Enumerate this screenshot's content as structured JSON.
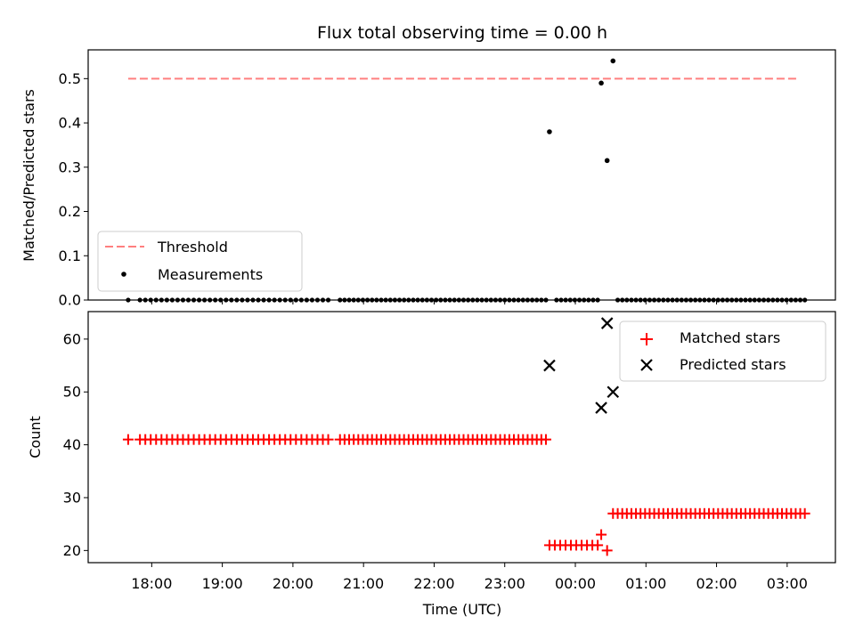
{
  "chart_data": [
    {
      "type": "scatter",
      "title": "Flux total observing time = 0.00 h",
      "ylabel": "Matched/Predicted stars",
      "xlabel": "",
      "ylim": [
        0,
        0.565
      ],
      "yticks": [
        "0.0",
        "0.1",
        "0.2",
        "0.3",
        "0.4",
        "0.5"
      ],
      "legend": {
        "placement": "lower-left",
        "entries": [
          "Threshold",
          "Measurements"
        ]
      },
      "threshold": {
        "name": "Threshold",
        "value": 0.5,
        "x_start": "17:40",
        "x_end": "03:10",
        "color": "#ff7f7f"
      },
      "series": [
        {
          "name": "Measurements",
          "color": "#000000",
          "nonzero_points": [
            {
              "x": "23:38",
              "y": 0.38
            },
            {
              "x": "00:22",
              "y": 0.49
            },
            {
              "x": "00:27",
              "y": 0.315
            },
            {
              "x": "00:32",
              "y": 0.54
            }
          ],
          "zero_ranges": [
            {
              "from": "17:40",
              "to": "17:40",
              "count": 1
            },
            {
              "from": "17:50",
              "to": "20:30",
              "count": 36
            },
            {
              "from": "20:40",
              "to": "23:35",
              "count": 46
            },
            {
              "from": "23:44",
              "to": "00:19",
              "count": 10
            },
            {
              "from": "00:36",
              "to": "03:15",
              "count": 42
            }
          ]
        }
      ]
    },
    {
      "type": "scatter",
      "xlabel": "Time (UTC)",
      "ylabel": "Count",
      "ylim": [
        17.7,
        65.2
      ],
      "xlim": [
        "17:06",
        "03:41"
      ],
      "yticks": [
        "20",
        "30",
        "40",
        "50",
        "60"
      ],
      "xticks": [
        "18:00",
        "19:00",
        "20:00",
        "21:00",
        "22:00",
        "23:00",
        "00:00",
        "01:00",
        "02:00",
        "03:00"
      ],
      "legend": {
        "placement": "top-right",
        "entries": [
          "Matched stars",
          "Predicted stars"
        ]
      },
      "series": [
        {
          "name": "Matched stars",
          "marker": "+",
          "color": "#ff0000",
          "segments": [
            {
              "from": "17:40",
              "to": "17:40",
              "count": 1,
              "y": 41
            },
            {
              "from": "17:50",
              "to": "20:30",
              "count": 36,
              "y": 41
            },
            {
              "from": "20:40",
              "to": "23:35",
              "count": 46,
              "y": 41
            },
            {
              "from": "23:38",
              "to": "00:19",
              "count": 10,
              "y": 21
            },
            {
              "from": "00:36",
              "to": "03:15",
              "count": 42,
              "y": 27
            }
          ],
          "points": [
            {
              "x": "00:22",
              "y": 23
            },
            {
              "x": "00:27",
              "y": 20
            },
            {
              "x": "00:32",
              "y": 27
            }
          ]
        },
        {
          "name": "Predicted stars",
          "marker": "x",
          "color": "#000000",
          "points": [
            {
              "x": "23:38",
              "y": 55
            },
            {
              "x": "00:22",
              "y": 47
            },
            {
              "x": "00:27",
              "y": 63
            },
            {
              "x": "00:32",
              "y": 50
            }
          ]
        }
      ]
    }
  ]
}
